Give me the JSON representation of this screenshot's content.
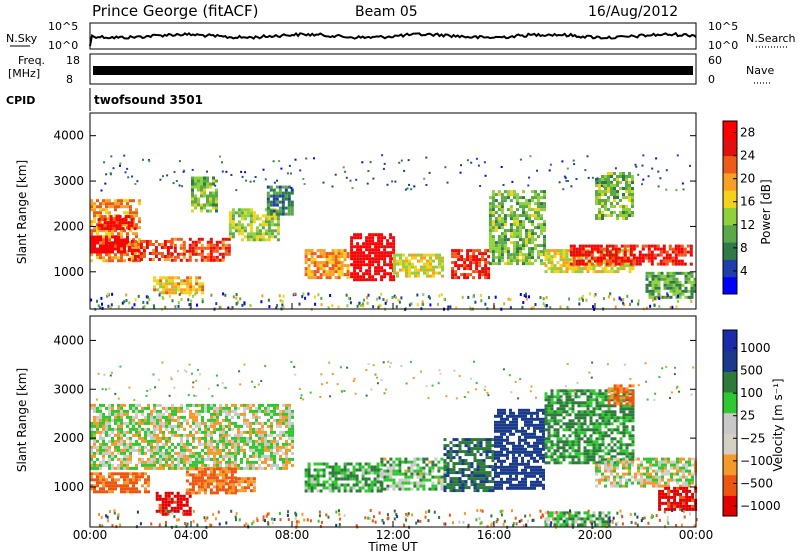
{
  "header": {
    "station": "Prince George (fitACF)",
    "beam": "Beam 05",
    "date": "16/Aug/2012"
  },
  "top_panels": {
    "nsky_label": "N.Sky",
    "nsky_tick_hi": "10^5",
    "nsky_tick_lo": "10^0",
    "nsearch_label": "N.Search",
    "nsearch_tick_hi": "10^5",
    "nsearch_tick_lo": "10^0",
    "freq_label_1": "Freq.",
    "freq_label_2": "[MHz]",
    "freq_tick_hi": "18",
    "freq_tick_lo": "8",
    "nave_label": "Nave",
    "nave_tick_hi": "60",
    "nave_tick_lo": "0",
    "cpid_label": "CPID",
    "cpid_value": "twofsound 3501"
  },
  "axes": {
    "ylabel": "Slant Range [km]",
    "xlabel": "Time UT",
    "y_ticks": [
      "1000",
      "2000",
      "3000",
      "4000"
    ],
    "x_ticks": [
      "00:00",
      "04:00",
      "08:00",
      "12:00",
      "16:00",
      "20:00",
      "00:00"
    ]
  },
  "colors": {
    "power_scale": [
      "#0000ff",
      "#1e3fa8",
      "#2f7a45",
      "#5aa84a",
      "#8ed13a",
      "#f2d21b",
      "#f7a024",
      "#ee5a1a",
      "#e01010",
      "#ff0000"
    ],
    "velocity_scale": [
      "#e00000",
      "#ee5511",
      "#f59a2a",
      "#d4d0c4",
      "#c8c8c8",
      "#30c830",
      "#2e7a3a",
      "#1a3a8c",
      "#1a2aa8"
    ]
  },
  "power_colorbar": {
    "label": "Power [dB]",
    "ticks": [
      "4",
      "8",
      "12",
      "16",
      "20",
      "24",
      "28"
    ]
  },
  "velocity_colorbar": {
    "label": "Velocity [m s⁻¹]",
    "ticks": [
      "1000",
      "500",
      "100",
      "25",
      "−25",
      "−100",
      "−500",
      "−1000"
    ]
  },
  "chart_data": [
    {
      "type": "heatmap",
      "quantity": "Power",
      "unit": "dB",
      "x_range_hours": [
        0,
        24
      ],
      "ylim": [
        180,
        4500
      ],
      "clim": [
        0,
        30
      ],
      "regions": [
        {
          "t": [
            0.0,
            2.0
          ],
          "r": [
            1250,
            2600
          ],
          "power_db": 20
        },
        {
          "t": [
            0.0,
            1.5
          ],
          "r": [
            1450,
            1800
          ],
          "power_db": 28
        },
        {
          "t": [
            0.3,
            1.8
          ],
          "r": [
            1950,
            2250
          ],
          "power_db": 27
        },
        {
          "t": [
            1.5,
            3.2
          ],
          "r": [
            1300,
            1700
          ],
          "power_db": 24
        },
        {
          "t": [
            2.5,
            4.5
          ],
          "r": [
            550,
            900
          ],
          "power_db": 18
        },
        {
          "t": [
            3.2,
            5.5
          ],
          "r": [
            1250,
            1750
          ],
          "power_db": 24
        },
        {
          "t": [
            4.0,
            5.0
          ],
          "r": [
            2350,
            3100
          ],
          "power_db": 12
        },
        {
          "t": [
            5.5,
            7.5
          ],
          "r": [
            1700,
            2400
          ],
          "power_db": 14
        },
        {
          "t": [
            7.0,
            8.0
          ],
          "r": [
            2300,
            2900
          ],
          "power_db": 8
        },
        {
          "t": [
            8.5,
            10.2
          ],
          "r": [
            900,
            1500
          ],
          "power_db": 20
        },
        {
          "t": [
            10.3,
            12.0
          ],
          "r": [
            850,
            1850
          ],
          "power_db": 29
        },
        {
          "t": [
            12.0,
            14.0
          ],
          "r": [
            900,
            1400
          ],
          "power_db": 16
        },
        {
          "t": [
            14.3,
            15.8
          ],
          "r": [
            850,
            1500
          ],
          "power_db": 25
        },
        {
          "t": [
            15.8,
            18.0
          ],
          "r": [
            1200,
            2800
          ],
          "power_db": 12
        },
        {
          "t": [
            18.0,
            21.5
          ],
          "r": [
            1000,
            1500
          ],
          "power_db": 16
        },
        {
          "t": [
            19.0,
            23.8
          ],
          "r": [
            1200,
            1600
          ],
          "power_db": 26
        },
        {
          "t": [
            20.0,
            21.5
          ],
          "r": [
            2200,
            3200
          ],
          "power_db": 12
        },
        {
          "t": [
            22.0,
            24.0
          ],
          "r": [
            450,
            1000
          ],
          "power_db": 10
        }
      ]
    },
    {
      "type": "heatmap",
      "quantity": "Velocity",
      "unit": "m s^-1",
      "x_range_hours": [
        0,
        24
      ],
      "ylim": [
        180,
        4500
      ],
      "regions": [
        {
          "t": [
            0.0,
            8.0
          ],
          "r": [
            1400,
            2700
          ],
          "vel": 0
        },
        {
          "t": [
            0.0,
            2.3
          ],
          "r": [
            900,
            1300
          ],
          "vel": -300
        },
        {
          "t": [
            2.6,
            4.0
          ],
          "r": [
            450,
            900
          ],
          "vel": -800
        },
        {
          "t": [
            3.8,
            5.8
          ],
          "r": [
            900,
            1400
          ],
          "vel": -300
        },
        {
          "t": [
            5.5,
            6.5
          ],
          "r": [
            950,
            1200
          ],
          "vel": -200
        },
        {
          "t": [
            8.5,
            11.5
          ],
          "r": [
            900,
            1500
          ],
          "vel": 150
        },
        {
          "t": [
            11.5,
            14.0
          ],
          "r": [
            950,
            1600
          ],
          "vel": 80
        },
        {
          "t": [
            14.0,
            16.0
          ],
          "r": [
            900,
            2000
          ],
          "vel": 400
        },
        {
          "t": [
            16.0,
            18.0
          ],
          "r": [
            1000,
            2600
          ],
          "vel": 600
        },
        {
          "t": [
            18.0,
            21.5
          ],
          "r": [
            1500,
            3000
          ],
          "vel": 200
        },
        {
          "t": [
            20.5,
            21.5
          ],
          "r": [
            2700,
            3100
          ],
          "vel": -300
        },
        {
          "t": [
            20.0,
            24.0
          ],
          "r": [
            1000,
            1600
          ],
          "vel": 0
        },
        {
          "t": [
            22.5,
            24.0
          ],
          "r": [
            550,
            1000
          ],
          "vel": -800
        },
        {
          "t": [
            18.0,
            20.5
          ],
          "r": [
            200,
            500
          ],
          "vel": 120
        }
      ]
    }
  ]
}
